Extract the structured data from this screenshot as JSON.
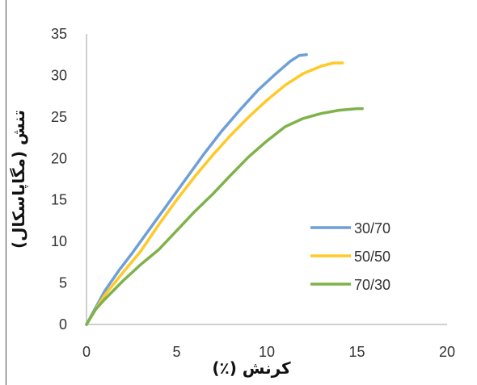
{
  "chart_data": {
    "type": "line",
    "title": "",
    "xlabel": "کرنش (٪)",
    "ylabel": "تنش (مگاپاسکال)",
    "xlim": [
      0,
      20
    ],
    "ylim": [
      0,
      35
    ],
    "x_ticks": [
      "0",
      "5",
      "10",
      "15",
      "20"
    ],
    "y_ticks": [
      "0",
      "5",
      "10",
      "15",
      "20",
      "25",
      "30",
      "35"
    ],
    "grid": false,
    "legend_position": "right-middle",
    "series": [
      {
        "name": "30/70",
        "color": "#6f9fd8",
        "points": [
          [
            0,
            0
          ],
          [
            0.5,
            2
          ],
          [
            1,
            4
          ],
          [
            1.8,
            6.5
          ],
          [
            2.5,
            8.5
          ],
          [
            3.5,
            11.5
          ],
          [
            4.5,
            14.5
          ],
          [
            5.5,
            17.5
          ],
          [
            6.5,
            20.5
          ],
          [
            7.5,
            23.3
          ],
          [
            8.5,
            25.8
          ],
          [
            9.5,
            28.2
          ],
          [
            10.5,
            30.2
          ],
          [
            11.3,
            31.7
          ],
          [
            11.8,
            32.4
          ],
          [
            12.2,
            32.5
          ]
        ]
      },
      {
        "name": "50/50",
        "color": "#ffc928",
        "points": [
          [
            0,
            0
          ],
          [
            0.5,
            1.8
          ],
          [
            1,
            3.5
          ],
          [
            2,
            6.2
          ],
          [
            3,
            8.8
          ],
          [
            4,
            12
          ],
          [
            5,
            15
          ],
          [
            6,
            17.8
          ],
          [
            7,
            20.4
          ],
          [
            8,
            22.8
          ],
          [
            9,
            25
          ],
          [
            10,
            27
          ],
          [
            11,
            28.8
          ],
          [
            12,
            30.2
          ],
          [
            13,
            31.1
          ],
          [
            13.7,
            31.5
          ],
          [
            14.2,
            31.5
          ]
        ]
      },
      {
        "name": "70/30",
        "color": "#7fb24a",
        "points": [
          [
            0,
            0
          ],
          [
            0.5,
            1.8
          ],
          [
            1,
            3
          ],
          [
            2,
            5.2
          ],
          [
            3,
            7.2
          ],
          [
            4,
            9
          ],
          [
            5,
            11.3
          ],
          [
            6,
            13.6
          ],
          [
            7,
            15.7
          ],
          [
            8,
            18
          ],
          [
            9,
            20.2
          ],
          [
            10,
            22.1
          ],
          [
            11,
            23.8
          ],
          [
            12,
            24.8
          ],
          [
            13,
            25.4
          ],
          [
            14,
            25.8
          ],
          [
            15,
            26
          ],
          [
            15.3,
            26
          ]
        ]
      }
    ]
  }
}
